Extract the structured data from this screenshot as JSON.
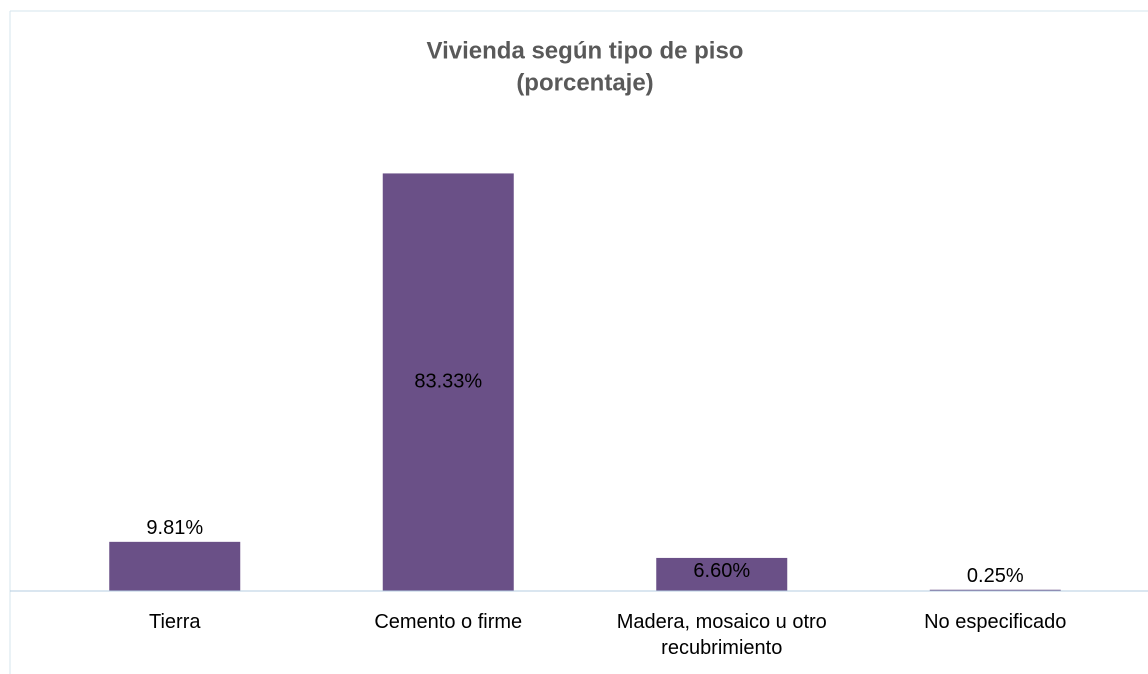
{
  "chart_data": {
    "type": "bar",
    "title": "Vivienda según tipo de piso",
    "subtitle": "(porcentaje)",
    "categories": [
      "Tierra",
      "Cemento o firme",
      "Madera, mosaico u otro recubrimiento",
      "No especificado"
    ],
    "values": [
      9.81,
      83.33,
      6.6,
      0.25
    ],
    "value_labels": [
      "9.81%",
      "83.33%",
      "6.60%",
      "0.25%"
    ],
    "color": "#6a5087",
    "ylim": [
      0,
      90
    ]
  }
}
